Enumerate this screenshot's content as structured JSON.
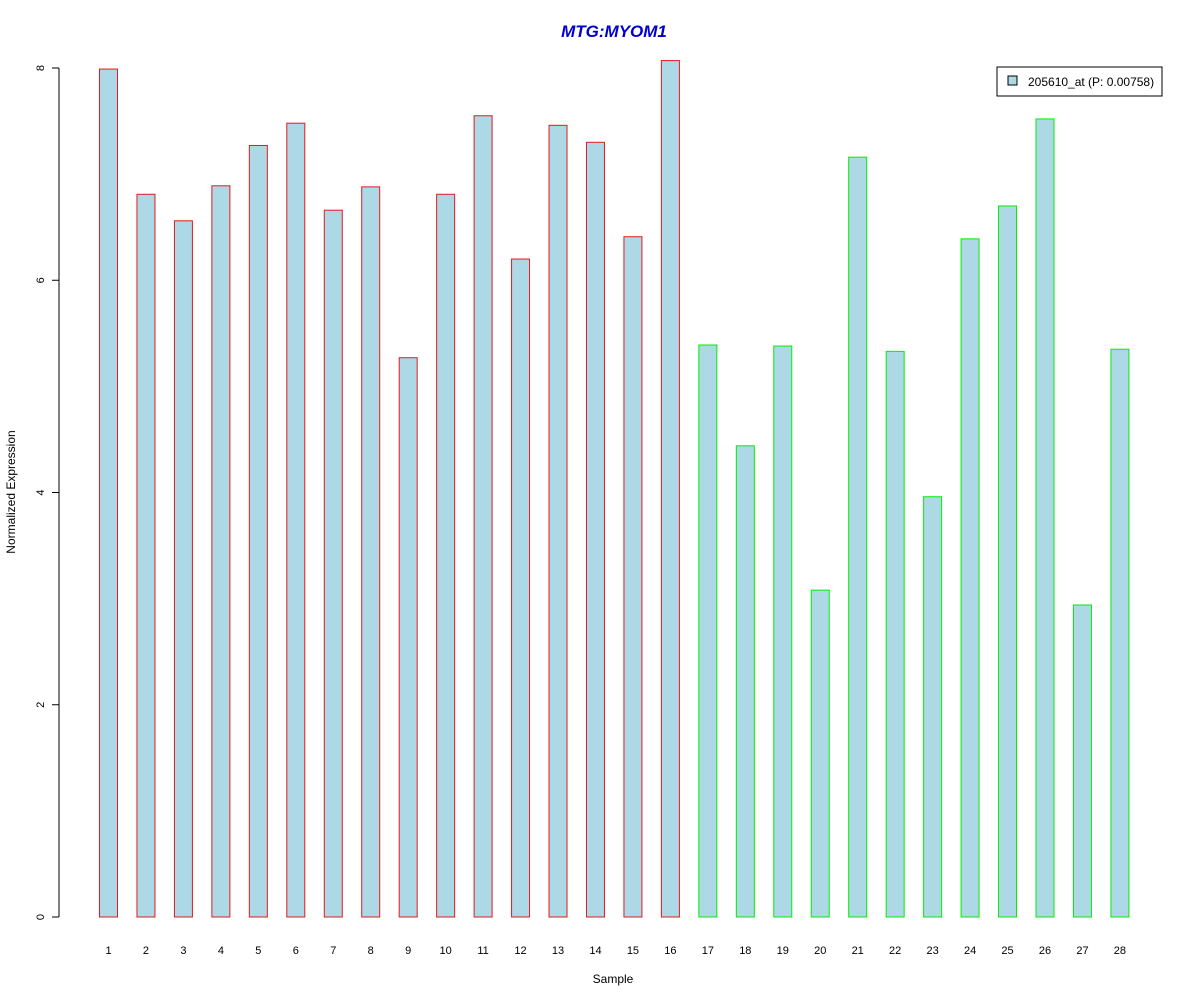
{
  "chart_data": {
    "type": "bar",
    "title": "MTG:MYOM1",
    "xlabel": "Sample",
    "ylabel": "Normalized Expression",
    "categories": [
      "1",
      "2",
      "3",
      "4",
      "5",
      "6",
      "7",
      "8",
      "9",
      "10",
      "11",
      "12",
      "13",
      "14",
      "15",
      "16",
      "17",
      "18",
      "19",
      "20",
      "21",
      "22",
      "23",
      "24",
      "25",
      "26",
      "27",
      "28"
    ],
    "series": [
      {
        "name": "205610_at (P: 0.00758)",
        "values": [
          7.99,
          6.81,
          6.56,
          6.89,
          7.27,
          7.48,
          6.66,
          6.88,
          5.27,
          6.81,
          7.55,
          6.2,
          7.46,
          7.3,
          6.41,
          8.07,
          5.39,
          4.44,
          5.38,
          3.08,
          7.16,
          5.33,
          3.96,
          6.39,
          6.7,
          7.52,
          2.94,
          5.35
        ]
      }
    ],
    "group_of_bar": [
      "a",
      "a",
      "a",
      "a",
      "a",
      "a",
      "a",
      "a",
      "a",
      "a",
      "a",
      "a",
      "a",
      "a",
      "a",
      "a",
      "b",
      "b",
      "b",
      "b",
      "b",
      "b",
      "b",
      "b",
      "b",
      "b",
      "b",
      "b"
    ],
    "group_border_colors": {
      "a": "#e31a1c",
      "b": "#00ee00"
    },
    "bar_fill": "#add8e6",
    "title_color": "#0000cc",
    "yticks": [
      0,
      2,
      4,
      6,
      8
    ],
    "ylim": [
      0,
      8.1
    ],
    "grid": false,
    "legend_position": "top-right"
  }
}
